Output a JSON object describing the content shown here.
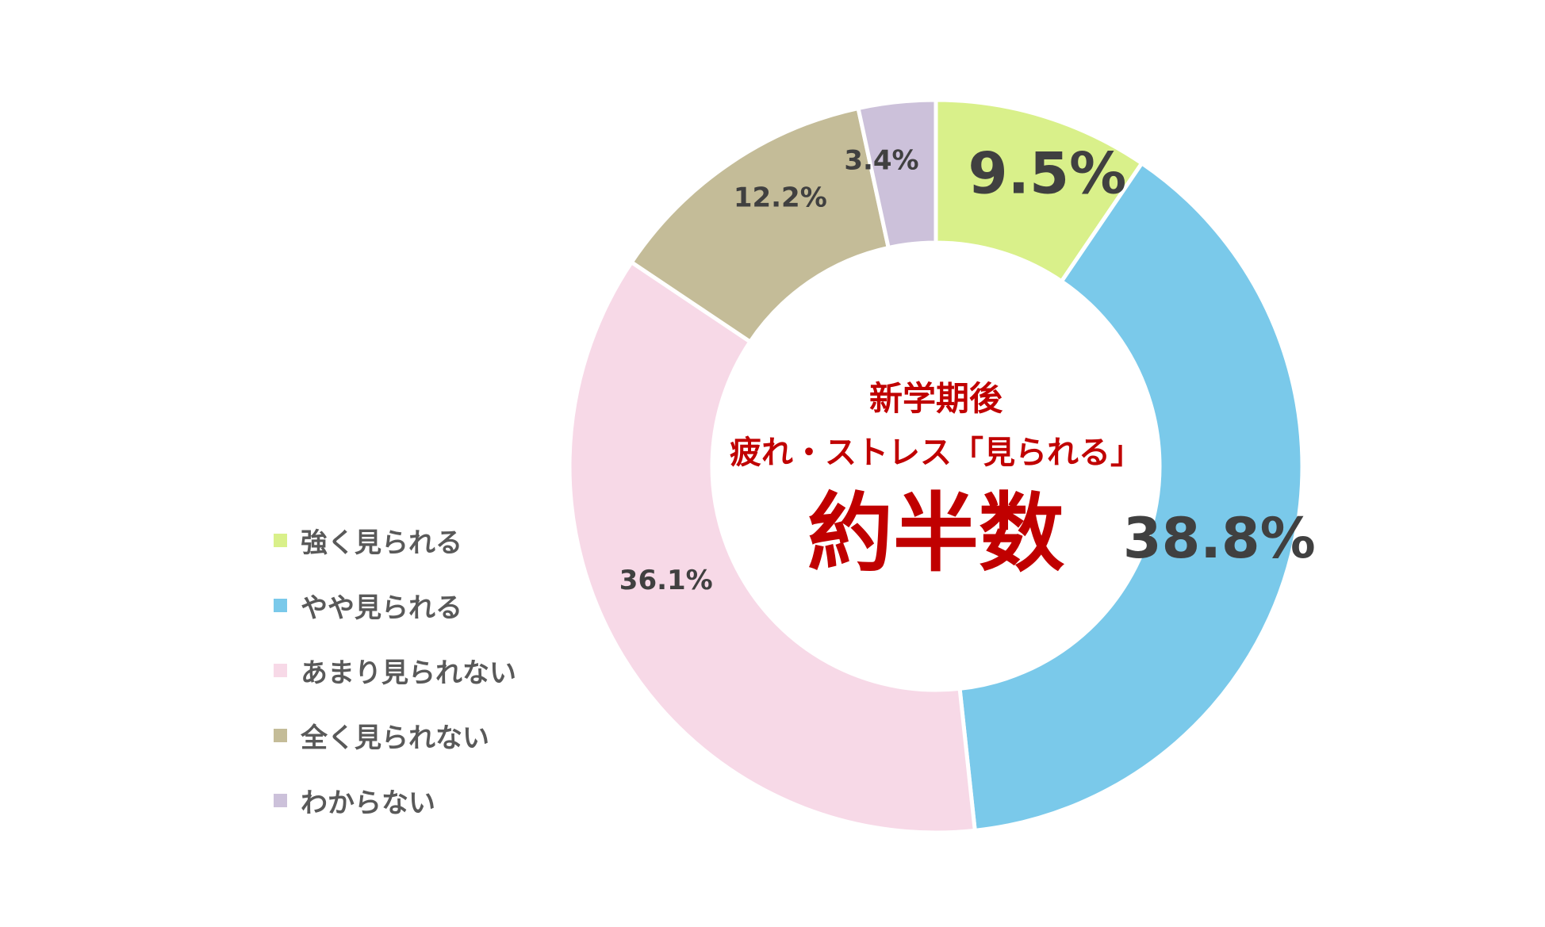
{
  "chart_data": {
    "type": "pie",
    "donut": true,
    "categories": [
      "強く見られる",
      "やや見られる",
      "あまり見られない",
      "全く見られない",
      "わからない"
    ],
    "values": [
      9.5,
      38.8,
      36.1,
      12.2,
      3.4
    ],
    "value_labels": [
      "9.5%",
      "38.8%",
      "36.1%",
      "12.2%",
      "3.4%"
    ],
    "colors": [
      "#d9f08a",
      "#7ac9ea",
      "#f7d9e7",
      "#c4bc98",
      "#ccc1da"
    ],
    "legend_position": "left",
    "center_text": {
      "line1": "新学期後",
      "line2": "疲れ・ストレス「見られる」",
      "line3": "約半数"
    }
  }
}
